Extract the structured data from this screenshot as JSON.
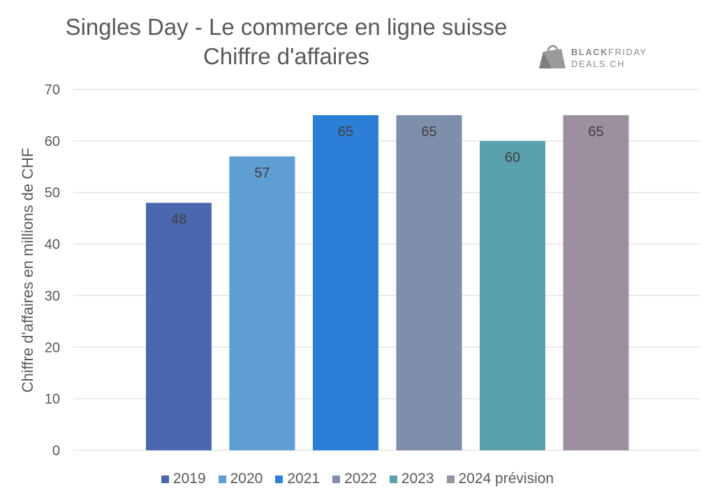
{
  "chart_data": {
    "type": "bar",
    "title": "Singles Day - Le commerce en ligne suisse",
    "subtitle": "Chiffre d'affaires",
    "xlabel": "",
    "ylabel": "Chiffre d'affaires en millions de CHF",
    "ylim": [
      0,
      70
    ],
    "yticks": [
      0,
      10,
      20,
      30,
      40,
      50,
      60,
      70
    ],
    "grid": true,
    "legend_position": "bottom",
    "categories": [
      "2019",
      "2020",
      "2021",
      "2022",
      "2023",
      "2024 prévision"
    ],
    "values": [
      48,
      57,
      65,
      65,
      60,
      65
    ],
    "colors": [
      "#4a67b0",
      "#5f9ed3",
      "#2b7fd6",
      "#7d8fab",
      "#59a1ac",
      "#9c8fa0"
    ]
  },
  "logo": {
    "line1_bold": "BLACK",
    "line1_light": "FRIDAY",
    "line2": "DEALS.CH",
    "icon": "shopping-bag-icon"
  },
  "colors": {
    "text": "#595959",
    "grid": "#d9d9d9",
    "label": "#404040"
  }
}
